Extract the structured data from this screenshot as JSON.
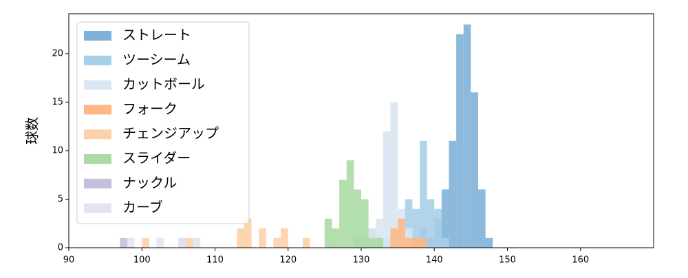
{
  "chart_data": {
    "type": "histogram",
    "ylabel": "球数",
    "xlim": [
      90,
      170
    ],
    "ylim": [
      0,
      24.1
    ],
    "xticks": [
      90,
      100,
      110,
      120,
      130,
      140,
      150,
      160
    ],
    "yticks": [
      0,
      5,
      10,
      15,
      20
    ],
    "legend": "upper left",
    "series": [
      {
        "name": "ストレート",
        "color": "#7fb1d8",
        "bins": [
          138,
          139,
          140,
          141,
          142,
          143,
          144,
          145,
          146,
          147,
          148
        ],
        "values": [
          2,
          1,
          3,
          6,
          11,
          22,
          23,
          16,
          6,
          1
        ]
      },
      {
        "name": "ツーシーム",
        "color": "#a8cfe8",
        "bins": [
          129,
          130,
          131,
          132,
          133,
          134,
          135,
          136,
          137,
          138,
          139,
          140,
          141,
          142
        ],
        "values": [
          1,
          1,
          2,
          1,
          1,
          2,
          3,
          5,
          4,
          11,
          5,
          4,
          1
        ]
      },
      {
        "name": "カットボール",
        "color": "#dae6f2",
        "bins": [
          130,
          131,
          132,
          133,
          134,
          135,
          136,
          137
        ],
        "values": [
          1,
          2,
          3,
          12,
          15,
          4,
          2
        ]
      },
      {
        "name": "フォーク",
        "color": "#fdb885",
        "bins": [
          134,
          135,
          136,
          137,
          138,
          139
        ],
        "values": [
          2,
          3,
          1,
          1,
          1
        ]
      },
      {
        "name": "チェンジアップ",
        "color": "#fdd0a9",
        "bins": [
          100,
          101,
          102,
          103,
          104,
          105,
          106,
          107,
          108,
          109,
          110,
          111,
          112,
          113,
          114,
          115,
          116,
          117,
          118,
          119,
          120,
          121,
          122,
          123
        ],
        "values": [
          1,
          0,
          0,
          0,
          0,
          0,
          1,
          0,
          0,
          0,
          0,
          0,
          0,
          2,
          3,
          0,
          2,
          0,
          1,
          2,
          0,
          0,
          1
        ]
      },
      {
        "name": "スライダー",
        "color": "#abdaa5",
        "bins": [
          125,
          126,
          127,
          128,
          129,
          130,
          131,
          132,
          133
        ],
        "values": [
          3,
          2,
          7,
          9,
          6,
          5,
          1,
          1
        ]
      },
      {
        "name": "ナックル",
        "color": "#c4bfdd",
        "bins": [
          97,
          98,
          99,
          100,
          101,
          102,
          103,
          104,
          105,
          106
        ],
        "values": [
          1,
          0,
          0,
          0,
          0,
          0,
          0,
          0,
          1
        ]
      },
      {
        "name": "カーブ",
        "color": "#e4e3ef",
        "bins": [
          98,
          99,
          100,
          101,
          102,
          103,
          104,
          105,
          106,
          107,
          108
        ],
        "values": [
          1,
          0,
          0,
          0,
          1,
          0,
          0,
          1,
          0,
          1
        ]
      }
    ]
  }
}
